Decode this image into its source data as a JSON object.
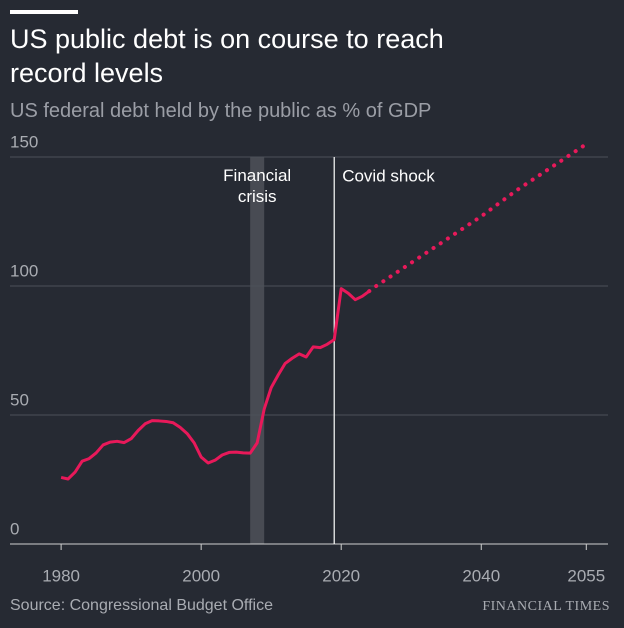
{
  "chart_data": {
    "type": "line",
    "title": "US public debt is on course to reach record levels",
    "subtitle": "US federal debt held by the public as % of GDP",
    "source": "Source: Congressional Budget Office",
    "brand": "FINANCIAL TIMES",
    "xlim": [
      1972.7,
      2058.1
    ],
    "ylim": [
      0,
      156
    ],
    "xticks": [
      1980,
      2000,
      2020,
      2040,
      2055
    ],
    "yticks": [
      0,
      50,
      100,
      150
    ],
    "grid": true,
    "series": [
      {
        "color": "#e8195a",
        "style": "solid",
        "x": [
          1980,
          1981,
          1982,
          1983,
          1984,
          1985,
          1986,
          1987,
          1988,
          1989,
          1990,
          1991,
          1992,
          1993,
          1994,
          1995,
          1996,
          1997,
          1998,
          1999,
          2000,
          2001,
          2002,
          2003,
          2004,
          2005,
          2006,
          2007,
          2008,
          2009,
          2010,
          2011,
          2012,
          2013,
          2014,
          2015,
          2016,
          2017,
          2018,
          2019,
          2020,
          2021,
          2022,
          2023,
          2024
        ],
        "values": [
          25.8,
          25.2,
          27.9,
          32.1,
          33.1,
          35.3,
          38.4,
          39.5,
          39.8,
          39.3,
          40.8,
          44.0,
          46.6,
          47.8,
          47.7,
          47.5,
          47.0,
          45.2,
          42.8,
          39.2,
          33.7,
          31.4,
          32.5,
          34.5,
          35.5,
          35.6,
          35.3,
          35.2,
          39.2,
          52.3,
          60.6,
          65.5,
          70.0,
          72.0,
          73.7,
          72.5,
          76.4,
          76.1,
          77.4,
          79.2,
          99.0,
          97.2,
          94.7,
          96.0,
          98.0
        ]
      },
      {
        "color": "#e8195a",
        "style": "dotted",
        "x": [
          2024,
          2025,
          2030,
          2035,
          2040,
          2045,
          2050,
          2055
        ],
        "values": [
          98.0,
          100.0,
          109.0,
          118.0,
          127.0,
          137.0,
          146.0,
          155.0
        ]
      }
    ],
    "shading": {
      "label": "Financial crisis",
      "x": [
        2007,
        2009
      ]
    },
    "marker_line": {
      "label": "Covid shock",
      "x": 2019
    }
  }
}
